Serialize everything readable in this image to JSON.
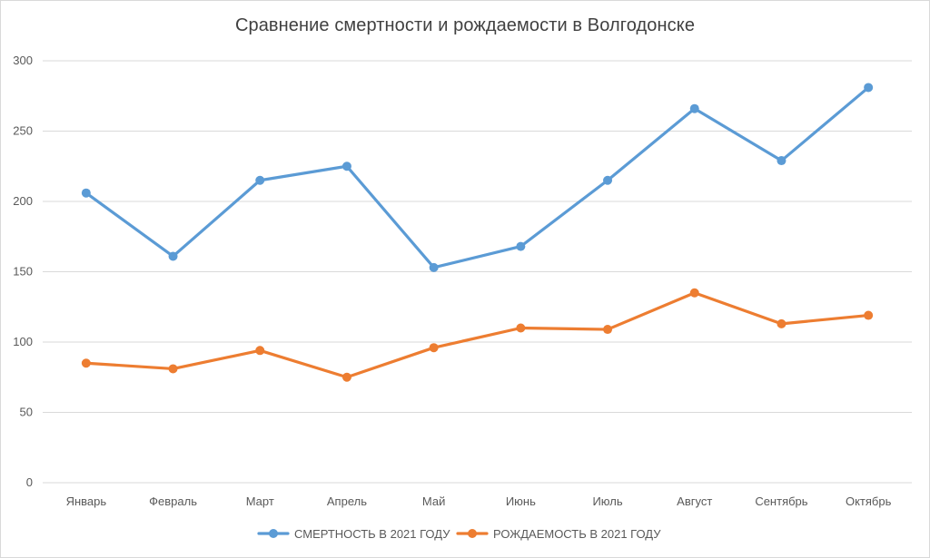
{
  "chart_data": {
    "type": "line",
    "title": "Сравнение смертности и рождаемости в Волгодонске",
    "xlabel": "",
    "ylabel": "",
    "ylim": [
      0,
      300
    ],
    "yticks": [
      0,
      50,
      100,
      150,
      200,
      250,
      300
    ],
    "grid": true,
    "legend_position": "bottom",
    "categories": [
      "Январь",
      "Февраль",
      "Март",
      "Апрель",
      "Май",
      "Июнь",
      "Июль",
      "Август",
      "Сентябрь",
      "Октябрь"
    ],
    "series": [
      {
        "name": "СМЕРТНОСТЬ В 2021 ГОДУ",
        "color": "#5b9bd5",
        "values": [
          206,
          161,
          215,
          225,
          153,
          168,
          215,
          266,
          229,
          281
        ]
      },
      {
        "name": "РОЖДАЕМОСТЬ В 2021 ГОДУ",
        "color": "#ed7d31",
        "values": [
          85,
          81,
          94,
          75,
          96,
          110,
          109,
          135,
          113,
          119
        ]
      }
    ]
  }
}
